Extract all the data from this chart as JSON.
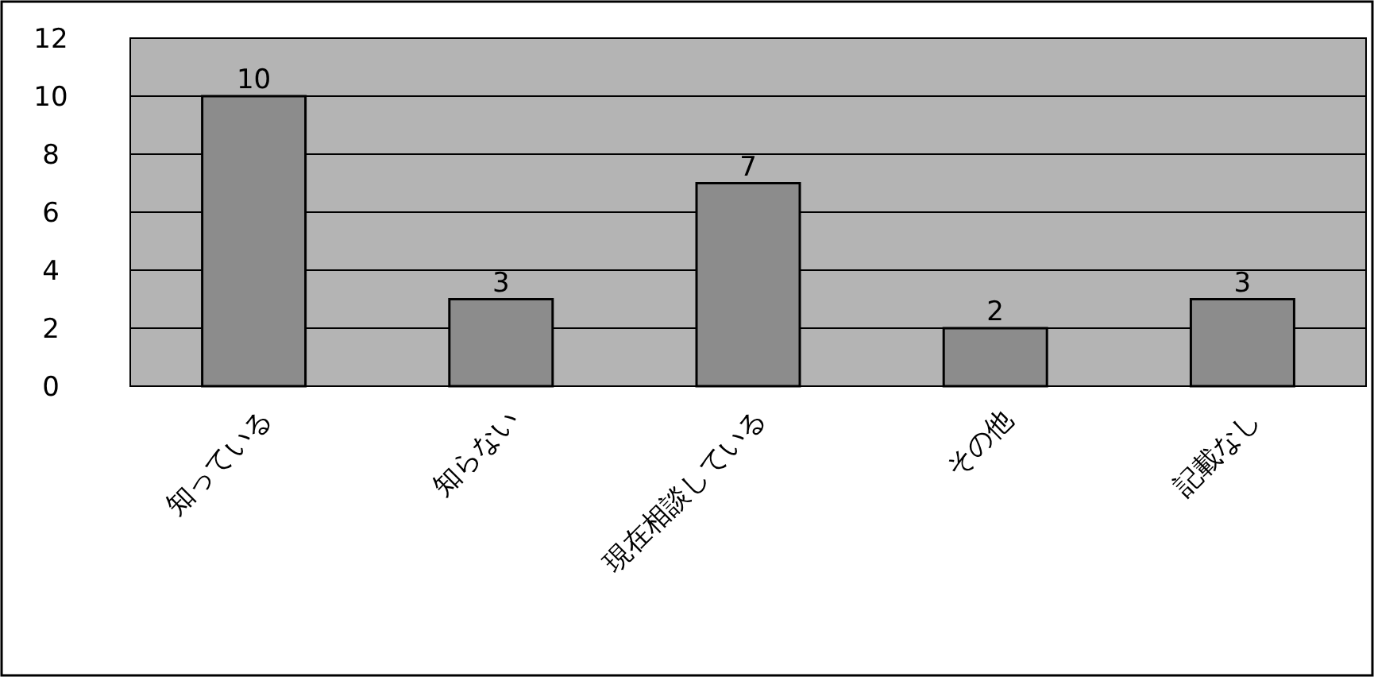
{
  "chart_data": {
    "type": "bar",
    "categories": [
      "知っている",
      "知らない",
      "現在相談している",
      "その他",
      "記載なし"
    ],
    "values": [
      10,
      3,
      7,
      2,
      3
    ],
    "color": "#8c8c8c",
    "ylim": [
      0,
      12
    ],
    "yticks": [
      0,
      2,
      4,
      6,
      8,
      10,
      12
    ],
    "grid": "y",
    "data_labels": true
  }
}
